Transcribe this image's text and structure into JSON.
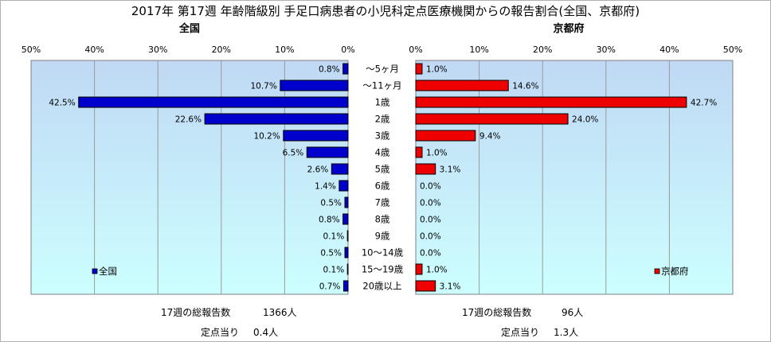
{
  "title": "2017年 第17週 年齢階級別 手足口病患者の小児科定点医療機関からの報告割合(全国、京都府)",
  "colors": {
    "national_bar": "#0000cc",
    "kyoto_bar": "#ee0000",
    "plot_bg_top": "#c0d8f4",
    "plot_bg_bottom": "#ccffff"
  },
  "footer": {
    "national_total_label": "17週の総報告数",
    "national_total_value": "1366人",
    "national_per_label": "定点当り",
    "national_per_value": "0.4人",
    "kyoto_total_label": "17週の総報告数",
    "kyoto_total_value": "96人",
    "kyoto_per_label": "定点当り",
    "kyoto_per_value": "1.3人"
  },
  "chart_data": [
    {
      "type": "bar",
      "orientation": "horizontal",
      "direction": "reversed",
      "title": "全国",
      "categories": [
        "～5ヶ月",
        "～11ヶ月",
        "1歳",
        "2歳",
        "3歳",
        "4歳",
        "5歳",
        "6歳",
        "7歳",
        "8歳",
        "9歳",
        "10～14歳",
        "15～19歳",
        "20歳以上"
      ],
      "series": [
        {
          "name": "全国",
          "values": [
            0.8,
            10.7,
            42.5,
            22.6,
            10.2,
            6.5,
            2.6,
            1.4,
            0.5,
            0.8,
            0.1,
            0.5,
            0.1,
            0.7
          ]
        }
      ],
      "value_labels": [
        "0.8%",
        "10.7%",
        "42.5%",
        "22.6%",
        "10.2%",
        "6.5%",
        "2.6%",
        "1.4%",
        "0.5%",
        "0.8%",
        "0.1%",
        "0.5%",
        "0.1%",
        "0.7%"
      ],
      "xlim": [
        0,
        50
      ],
      "x_ticks": [
        "0%",
        "10%",
        "20%",
        "30%",
        "40%",
        "50%"
      ],
      "grid": true,
      "legend_position": "bottom-left"
    },
    {
      "type": "bar",
      "orientation": "horizontal",
      "title": "京都府",
      "categories": [
        "～5ヶ月",
        "～11ヶ月",
        "1歳",
        "2歳",
        "3歳",
        "4歳",
        "5歳",
        "6歳",
        "7歳",
        "8歳",
        "9歳",
        "10～14歳",
        "15～19歳",
        "20歳以上"
      ],
      "series": [
        {
          "name": "京都府",
          "values": [
            1.0,
            14.6,
            42.7,
            24.0,
            9.4,
            1.0,
            3.1,
            0.0,
            0.0,
            0.0,
            0.0,
            0.0,
            1.0,
            3.1
          ]
        }
      ],
      "value_labels": [
        "1.0%",
        "14.6%",
        "42.7%",
        "24.0%",
        "9.4%",
        "1.0%",
        "3.1%",
        "0.0%",
        "0.0%",
        "0.0%",
        "0.0%",
        "0.0%",
        "1.0%",
        "3.1%"
      ],
      "xlim": [
        0,
        50
      ],
      "x_ticks": [
        "0%",
        "10%",
        "20%",
        "30%",
        "40%",
        "50%"
      ],
      "grid": true,
      "legend_position": "bottom-right"
    }
  ]
}
